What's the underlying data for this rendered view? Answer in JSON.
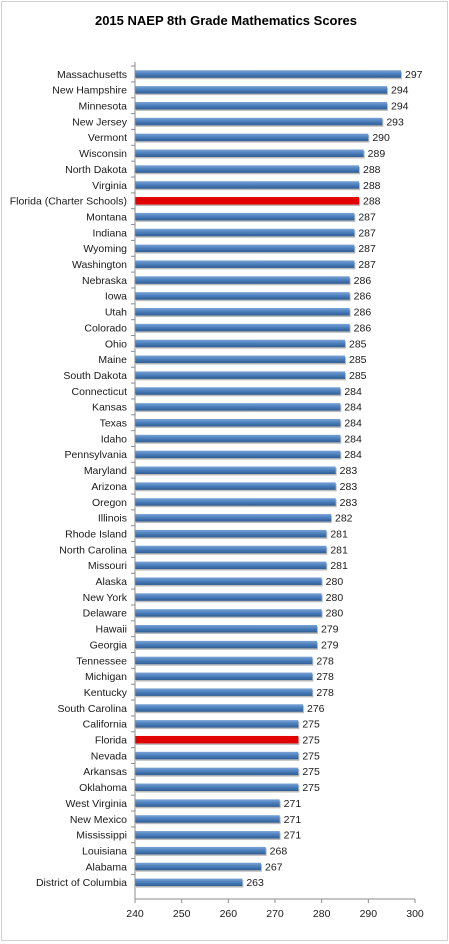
{
  "chart_data": {
    "type": "bar",
    "orientation": "horizontal",
    "title": "2015 NAEP 8th Grade Mathematics Scores",
    "xlim": [
      240,
      300
    ],
    "x_ticks": [
      240,
      250,
      260,
      270,
      280,
      290,
      300
    ],
    "grid": false,
    "legend": "none",
    "colors": {
      "default_bar": "#4a7ebb",
      "highlight_bar": "#e00000"
    },
    "highlighted": [
      "Florida (Charter Schools)",
      "Florida"
    ],
    "categories": [
      "Massachusetts",
      "New Hampshire",
      "Minnesota",
      "New Jersey",
      "Vermont",
      "Wisconsin",
      "North Dakota",
      "Virginia",
      "Florida (Charter Schools)",
      "Montana",
      "Indiana",
      "Wyoming",
      "Washington",
      "Nebraska",
      "Iowa",
      "Utah",
      "Colorado",
      "Ohio",
      "Maine",
      "South Dakota",
      "Connecticut",
      "Kansas",
      "Texas",
      "Idaho",
      "Pennsylvania",
      "Maryland",
      "Arizona",
      "Oregon",
      "Illinois",
      "Rhode Island",
      "North Carolina",
      "Missouri",
      "Alaska",
      "New York",
      "Delaware",
      "Hawaii",
      "Georgia",
      "Tennessee",
      "Michigan",
      "Kentucky",
      "South Carolina",
      "California",
      "Florida",
      "Nevada",
      "Arkansas",
      "Oklahoma",
      "West Virginia",
      "New Mexico",
      "Mississippi",
      "Louisiana",
      "Alabama",
      "District of Columbia"
    ],
    "values": [
      297,
      294,
      294,
      293,
      290,
      289,
      288,
      288,
      288,
      287,
      287,
      287,
      287,
      286,
      286,
      286,
      286,
      285,
      285,
      285,
      284,
      284,
      284,
      284,
      284,
      283,
      283,
      283,
      282,
      281,
      281,
      281,
      280,
      280,
      280,
      279,
      279,
      278,
      278,
      278,
      276,
      275,
      275,
      275,
      275,
      275,
      271,
      271,
      271,
      268,
      267,
      263
    ]
  }
}
